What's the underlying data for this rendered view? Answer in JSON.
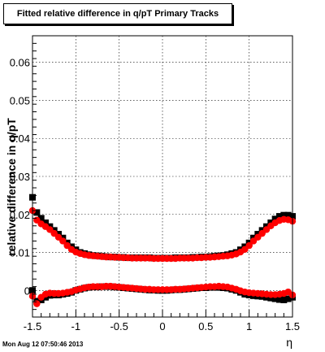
{
  "title": "Fitted relative difference in q/pT  Primary Tracks",
  "timestamp": "Mon Aug 12 07:50:46 2013",
  "chart_data": {
    "type": "scatter",
    "xlabel": "η",
    "ylabel": "relative difference in q/pT",
    "xlim": [
      -1.5,
      1.5
    ],
    "ylim": [
      -0.007,
      0.067
    ],
    "xticks": [
      -1.5,
      -1,
      -0.5,
      0,
      0.5,
      1,
      1.5
    ],
    "xtick_labels": [
      "-1.5",
      "-1",
      "-0.5",
      "0",
      "0.5",
      "1",
      "1.5"
    ],
    "yticks": [
      0,
      0.01,
      0.02,
      0.03,
      0.04,
      0.05,
      0.06
    ],
    "ytick_labels": [
      "0",
      "0.01",
      "0.02",
      "0.03",
      "0.04",
      "0.05",
      "0.06"
    ],
    "grid": true,
    "series": [
      {
        "color": "#000000",
        "marker": "square",
        "x": [
          -1.5,
          -1.45,
          -1.4,
          -1.35,
          -1.3,
          -1.25,
          -1.2,
          -1.15,
          -1.1,
          -1.05,
          -1.0,
          -0.95,
          -0.9,
          -0.85,
          -0.8,
          -0.75,
          -0.7,
          -0.65,
          -0.6,
          -0.55,
          -0.5,
          -0.45,
          -0.4,
          -0.35,
          -0.3,
          -0.25,
          -0.2,
          -0.15,
          -0.1,
          -0.05,
          0.0,
          0.05,
          0.1,
          0.15,
          0.2,
          0.25,
          0.3,
          0.35,
          0.4,
          0.45,
          0.5,
          0.55,
          0.6,
          0.65,
          0.7,
          0.75,
          0.8,
          0.85,
          0.9,
          0.95,
          1.0,
          1.05,
          1.1,
          1.15,
          1.2,
          1.25,
          1.3,
          1.35,
          1.4,
          1.45,
          1.5
        ],
        "y": [
          0.0245,
          0.0205,
          0.019,
          0.0178,
          0.0168,
          0.0158,
          0.0148,
          0.0138,
          0.0125,
          0.0115,
          0.0107,
          0.01,
          0.0097,
          0.0094,
          0.0092,
          0.0091,
          0.009,
          0.0089,
          0.0088,
          0.0088,
          0.0087,
          0.0087,
          0.0086,
          0.0086,
          0.0086,
          0.0086,
          0.0086,
          0.0086,
          0.0085,
          0.0085,
          0.0085,
          0.0085,
          0.0085,
          0.0086,
          0.0086,
          0.0086,
          0.0086,
          0.0087,
          0.0087,
          0.0088,
          0.0088,
          0.0089,
          0.009,
          0.0091,
          0.0092,
          0.0094,
          0.0097,
          0.01,
          0.0107,
          0.0115,
          0.0125,
          0.0138,
          0.0148,
          0.0158,
          0.0168,
          0.0178,
          0.0188,
          0.0195,
          0.0198,
          0.0198,
          0.0195
        ]
      },
      {
        "color": "#ff0000",
        "marker": "circle",
        "x": [
          -1.5,
          -1.45,
          -1.4,
          -1.35,
          -1.3,
          -1.25,
          -1.2,
          -1.15,
          -1.1,
          -1.05,
          -1.0,
          -0.95,
          -0.9,
          -0.85,
          -0.8,
          -0.75,
          -0.7,
          -0.65,
          -0.6,
          -0.55,
          -0.5,
          -0.45,
          -0.4,
          -0.35,
          -0.3,
          -0.25,
          -0.2,
          -0.15,
          -0.1,
          -0.05,
          0.0,
          0.05,
          0.1,
          0.15,
          0.2,
          0.25,
          0.3,
          0.35,
          0.4,
          0.45,
          0.5,
          0.55,
          0.6,
          0.65,
          0.7,
          0.75,
          0.8,
          0.85,
          0.9,
          0.95,
          1.0,
          1.05,
          1.1,
          1.15,
          1.2,
          1.25,
          1.3,
          1.35,
          1.4,
          1.45,
          1.5
        ],
        "y": [
          0.021,
          0.0185,
          0.0175,
          0.0168,
          0.016,
          0.015,
          0.014,
          0.013,
          0.0118,
          0.0108,
          0.0101,
          0.0097,
          0.0094,
          0.0092,
          0.0091,
          0.009,
          0.0089,
          0.0088,
          0.0088,
          0.0087,
          0.0087,
          0.0086,
          0.0086,
          0.0085,
          0.0085,
          0.0085,
          0.0085,
          0.0085,
          0.0084,
          0.0084,
          0.0084,
          0.0084,
          0.0084,
          0.0084,
          0.0085,
          0.0085,
          0.0085,
          0.0085,
          0.0086,
          0.0086,
          0.0087,
          0.0087,
          0.0088,
          0.0089,
          0.009,
          0.0091,
          0.0093,
          0.0096,
          0.0101,
          0.0108,
          0.0118,
          0.013,
          0.014,
          0.015,
          0.016,
          0.017,
          0.0178,
          0.0184,
          0.0187,
          0.0186,
          0.0182
        ]
      },
      {
        "color": "#000000",
        "marker": "square",
        "x": [
          -1.5,
          -1.45,
          -1.4,
          -1.35,
          -1.3,
          -1.25,
          -1.2,
          -1.15,
          -1.1,
          -1.05,
          -1.0,
          -0.95,
          -0.9,
          -0.85,
          -0.8,
          -0.75,
          -0.7,
          -0.65,
          -0.6,
          -0.55,
          -0.5,
          -0.45,
          -0.4,
          -0.35,
          -0.3,
          -0.25,
          -0.2,
          -0.15,
          -0.1,
          -0.05,
          0.0,
          0.05,
          0.1,
          0.15,
          0.2,
          0.25,
          0.3,
          0.35,
          0.4,
          0.45,
          0.5,
          0.55,
          0.6,
          0.65,
          0.7,
          0.75,
          0.8,
          0.85,
          0.9,
          0.95,
          1.0,
          1.05,
          1.1,
          1.15,
          1.2,
          1.25,
          1.3,
          1.35,
          1.4,
          1.45,
          1.5
        ],
        "y": [
          0.0,
          -0.0028,
          -0.0025,
          -0.0018,
          -0.0013,
          -0.0012,
          -0.0012,
          -0.001,
          -0.0008,
          -0.0005,
          0.0,
          0.0003,
          0.0006,
          0.0008,
          0.0009,
          0.0009,
          0.001,
          0.001,
          0.001,
          0.0009,
          0.0008,
          0.0007,
          0.0006,
          0.0005,
          0.0004,
          0.0003,
          0.0002,
          0.0001,
          0.0001,
          0.0,
          0.0,
          0.0,
          0.0001,
          0.0002,
          0.0002,
          0.0003,
          0.0004,
          0.0005,
          0.0006,
          0.0007,
          0.0007,
          0.0008,
          0.0008,
          0.0008,
          0.0007,
          0.0006,
          0.0003,
          0.0,
          -0.0005,
          -0.001,
          -0.0012,
          -0.0014,
          -0.0015,
          -0.0016,
          -0.0018,
          -0.002,
          -0.0022,
          -0.0024,
          -0.0025,
          -0.0022,
          -0.0018
        ]
      },
      {
        "color": "#ff0000",
        "marker": "circle",
        "x": [
          -1.5,
          -1.45,
          -1.4,
          -1.35,
          -1.3,
          -1.25,
          -1.2,
          -1.15,
          -1.1,
          -1.05,
          -1.0,
          -0.95,
          -0.9,
          -0.85,
          -0.8,
          -0.75,
          -0.7,
          -0.65,
          -0.6,
          -0.55,
          -0.5,
          -0.45,
          -0.4,
          -0.35,
          -0.3,
          -0.25,
          -0.2,
          -0.15,
          -0.1,
          -0.05,
          0.0,
          0.05,
          0.1,
          0.15,
          0.2,
          0.25,
          0.3,
          0.35,
          0.4,
          0.45,
          0.5,
          0.55,
          0.6,
          0.65,
          0.7,
          0.75,
          0.8,
          0.85,
          0.9,
          0.95,
          1.0,
          1.05,
          1.1,
          1.15,
          1.2,
          1.25,
          1.3,
          1.35,
          1.4,
          1.45,
          1.5
        ],
        "y": [
          -0.0015,
          -0.0035,
          -0.0018,
          -0.001,
          -0.0007,
          -0.0008,
          -0.0008,
          -0.0007,
          -0.0005,
          -0.0003,
          0.0001,
          0.0004,
          0.0007,
          0.0009,
          0.001,
          0.001,
          0.001,
          0.0011,
          0.0011,
          0.001,
          0.0009,
          0.0008,
          0.0007,
          0.0006,
          0.0005,
          0.0004,
          0.0003,
          0.0003,
          0.0002,
          0.0002,
          0.0002,
          0.0002,
          0.0002,
          0.0003,
          0.0003,
          0.0004,
          0.0005,
          0.0006,
          0.0007,
          0.0008,
          0.0009,
          0.001,
          0.001,
          0.0011,
          0.001,
          0.0009,
          0.0006,
          0.0003,
          -0.0001,
          -0.0004,
          -0.0006,
          -0.0007,
          -0.0008,
          -0.0009,
          -0.001,
          -0.0011,
          -0.0011,
          -0.001,
          -0.0008,
          -0.0004,
          -0.0012
        ]
      }
    ]
  }
}
